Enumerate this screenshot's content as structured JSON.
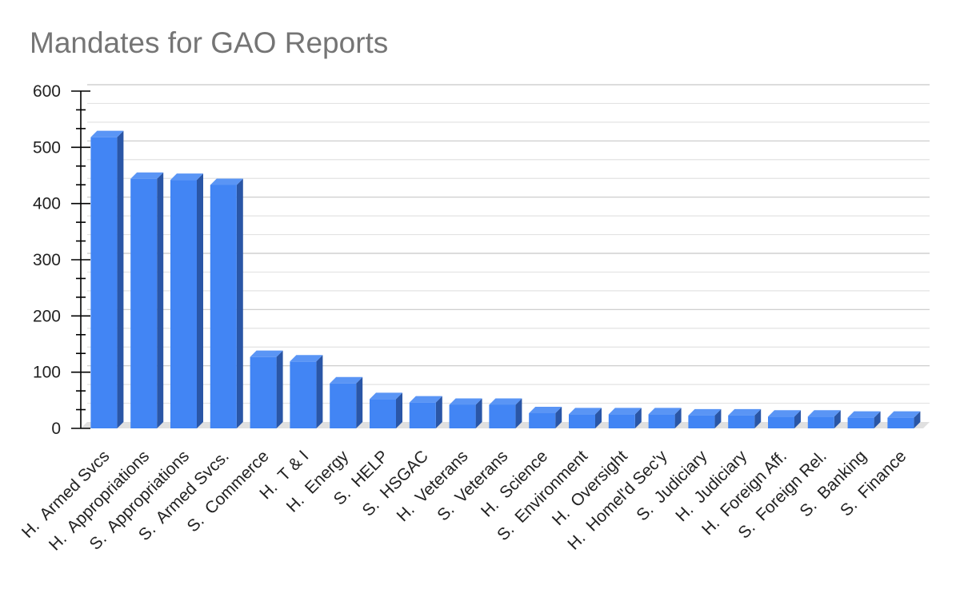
{
  "chart_data": {
    "type": "bar",
    "title": "Mandates for GAO Reports",
    "xlabel": "",
    "ylabel": "",
    "ylim": [
      0,
      600
    ],
    "yticks": [
      0,
      100,
      200,
      300,
      400,
      500,
      600
    ],
    "grid": true,
    "legend": "none",
    "style": "3d-column",
    "categories": [
      "H.  Armed Svcs",
      "H.  Appropriations",
      "S.  Appropriations",
      "S.  Armed Svcs.",
      "S.  Commerce",
      "H.  T & I",
      "H.  Energy",
      "S.  HELP",
      "S.  HSGAC",
      "H.  Veterans",
      "S.  Veterans",
      "H.  Science",
      "S.  Environment",
      "H.  Oversight",
      "H.  Homel'd Sec'y",
      "S.  Judiciary",
      "H.  Judiciary",
      "H.  Foreign Aff.",
      "S.  Foreign Rel.",
      "S.  Banking",
      "S.  Finance"
    ],
    "values": [
      518,
      444,
      442,
      433,
      127,
      119,
      80,
      52,
      46,
      42,
      42,
      27,
      25,
      25,
      25,
      23,
      23,
      21,
      21,
      19,
      19
    ]
  },
  "colors": {
    "bar_front": "#4285f4",
    "bar_top": "#5a95f5",
    "bar_side": "#2a56a6",
    "grid": "#cccccc",
    "axis": "#000000",
    "title": "#757575"
  }
}
